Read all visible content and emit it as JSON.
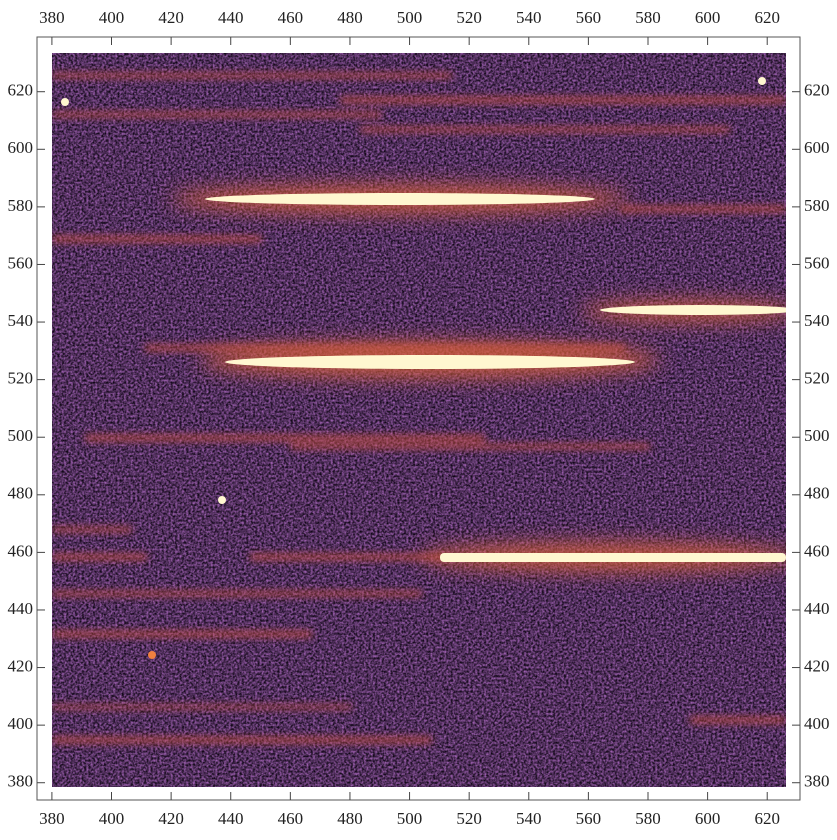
{
  "chart_data": {
    "type": "image",
    "xlim": [
      375,
      631
    ],
    "ylim": [
      374,
      639
    ],
    "xticks": [
      380,
      400,
      420,
      440,
      460,
      480,
      500,
      520,
      540,
      560,
      580,
      600,
      620
    ],
    "yticks": [
      380,
      400,
      420,
      440,
      460,
      480,
      500,
      520,
      540,
      560,
      580,
      600,
      620
    ]
  }
}
